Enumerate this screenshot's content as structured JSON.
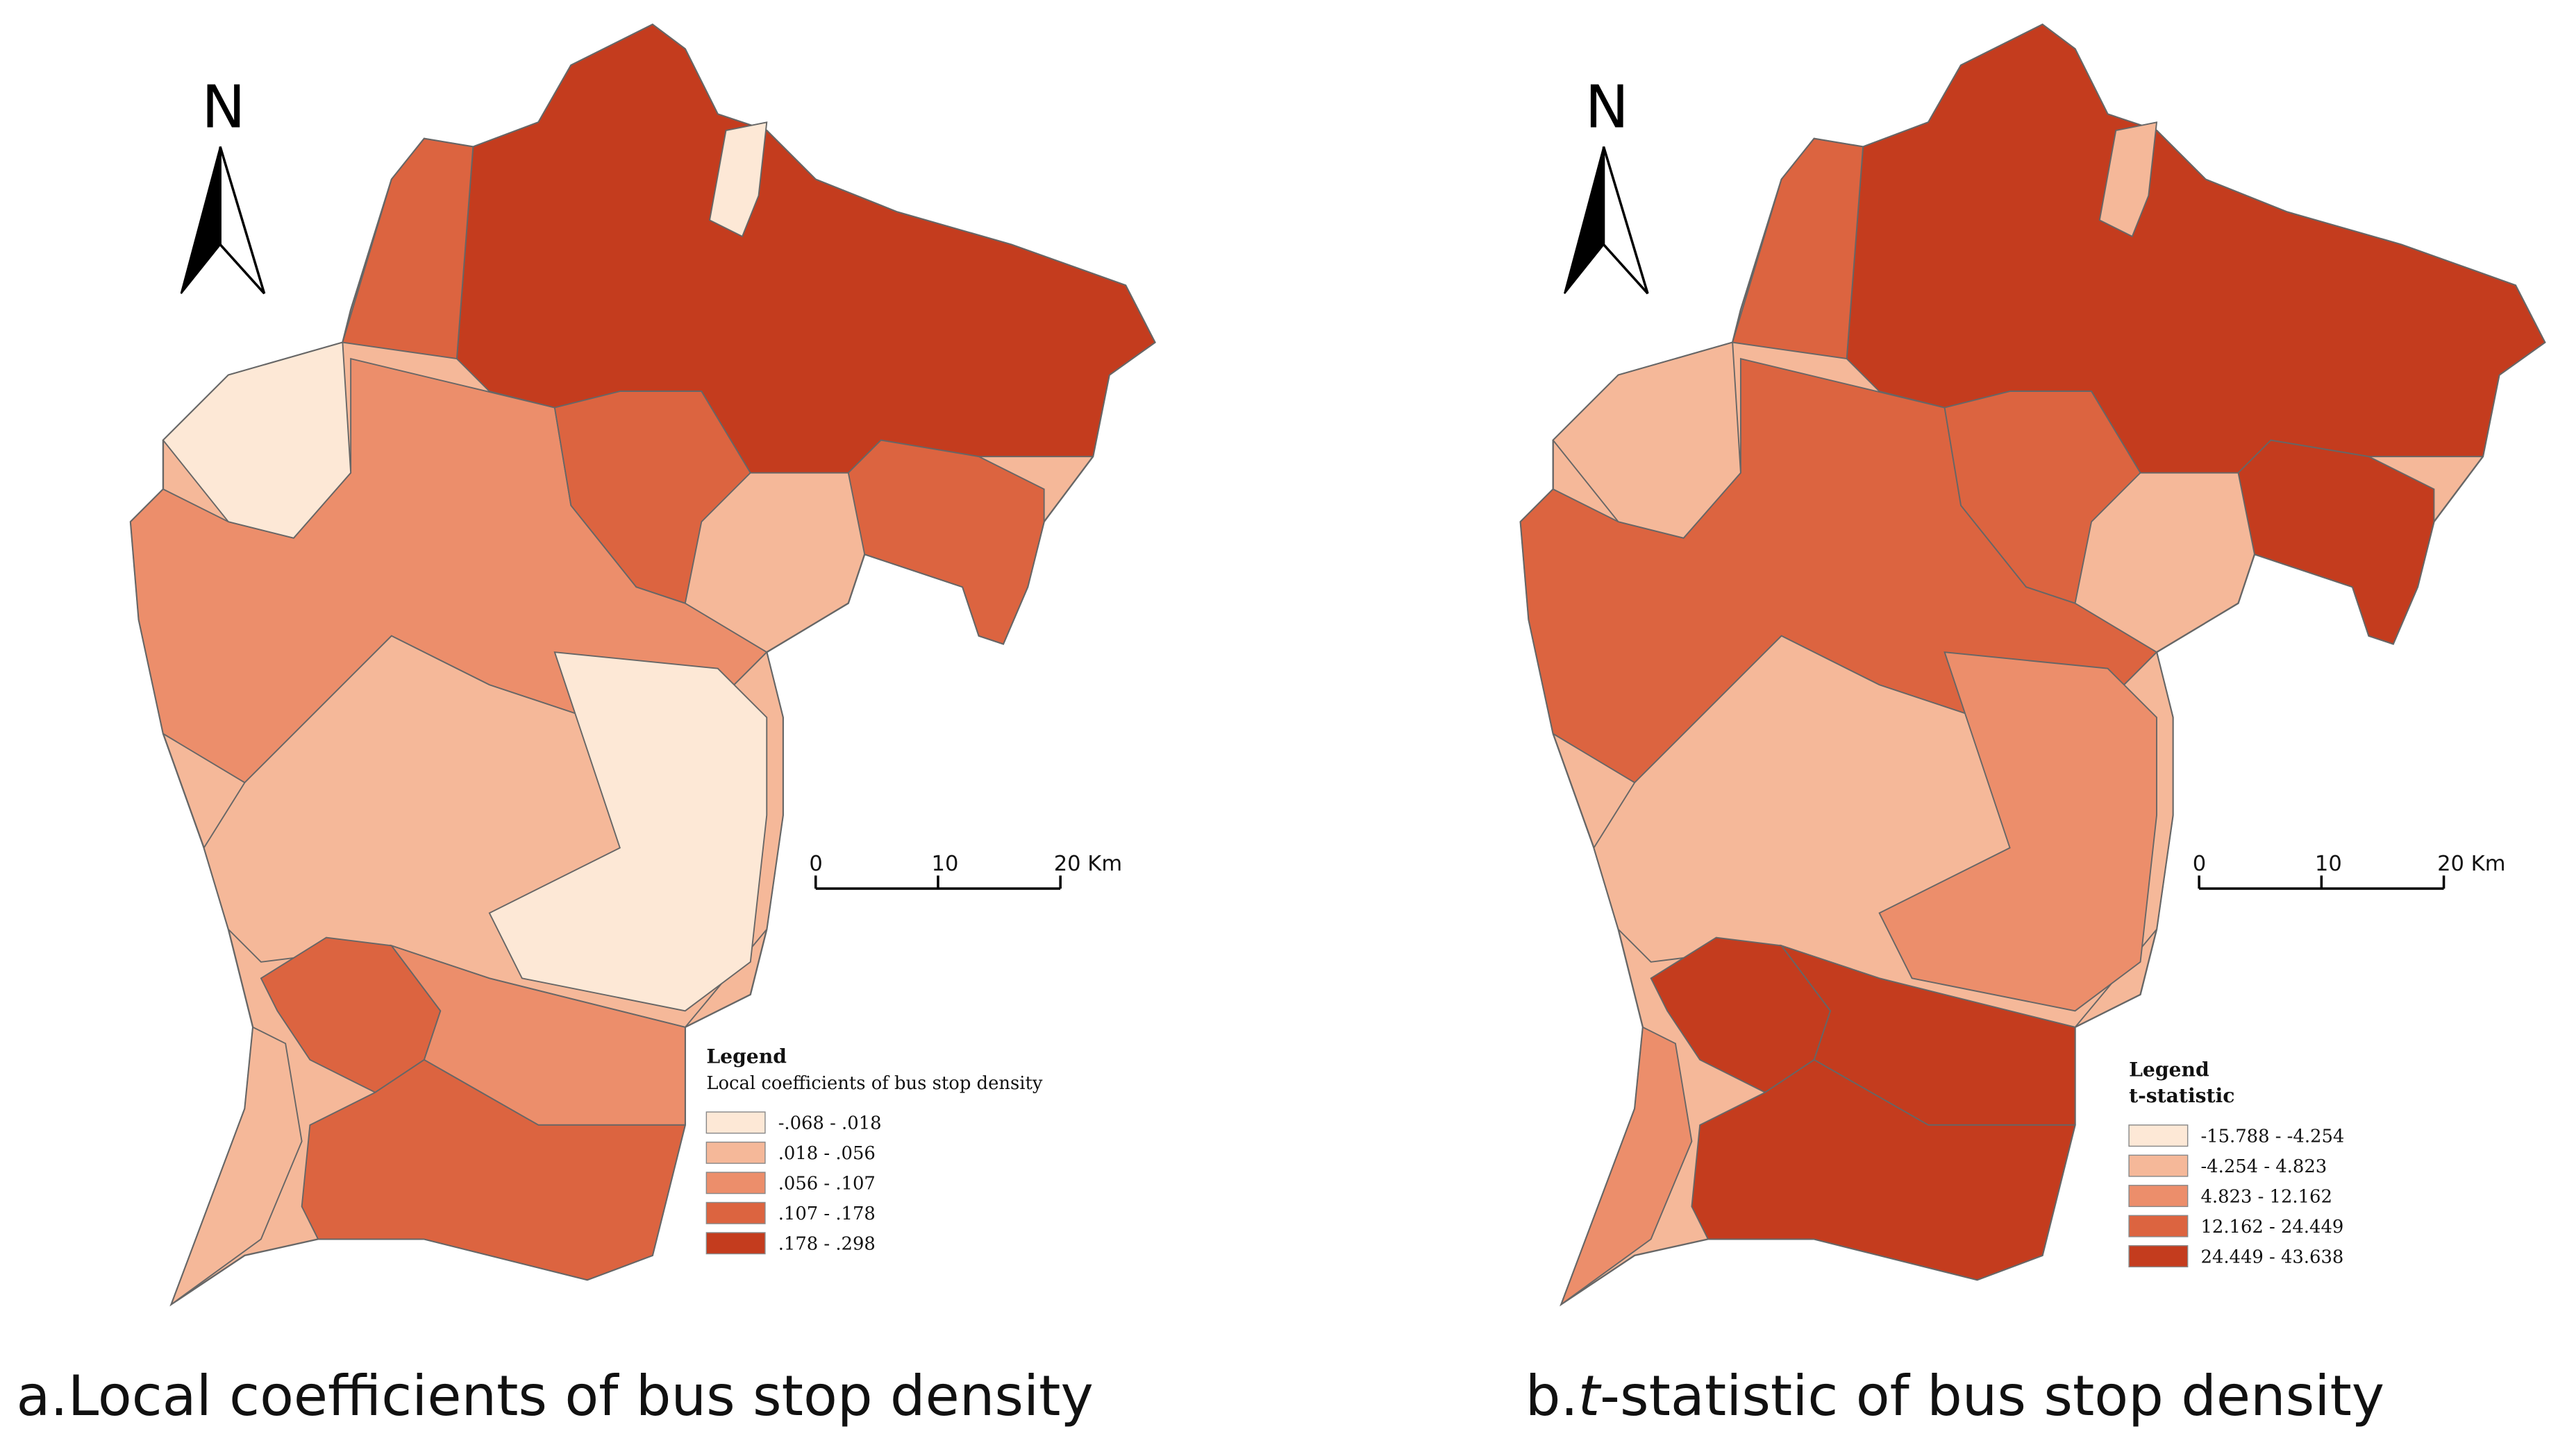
{
  "panels": [
    {
      "caption_label": "a.",
      "caption": "Local coefficients of bus stop density",
      "north": "N",
      "scale_bar": [
        "0",
        "10",
        "20 Km"
      ],
      "legend": {
        "title": "Legend",
        "subtitle": "Local coefficients of bus stop density",
        "classes": [
          {
            "label": "-.068 - .018",
            "color": "#fde8d6"
          },
          {
            "label": ".018 - .056",
            "color": "#f5b899"
          },
          {
            "label": ".056 - .107",
            "color": "#ec8e6b"
          },
          {
            "label": ".107 - .178",
            "color": "#dc6440"
          },
          {
            "label": ".178 - .298",
            "color": "#c43c1e"
          }
        ]
      }
    },
    {
      "caption_label": "b.",
      "caption_italic": "t",
      "caption": "-statistic of bus stop density",
      "north": "N",
      "scale_bar": [
        "0",
        "10",
        "20 Km"
      ],
      "legend": {
        "title": "Legend",
        "subtitle": "t-statistic",
        "classes": [
          {
            "label": "-15.788 - -4.254",
            "color": "#fde8d6"
          },
          {
            "label": "-4.254 - 4.823",
            "color": "#f5b899"
          },
          {
            "label": "4.823 - 12.162",
            "color": "#ec8e6b"
          },
          {
            "label": "12.162 - 24.449",
            "color": "#dc6440"
          },
          {
            "label": "24.449 - 43.638",
            "color": "#c43c1e"
          }
        ]
      }
    }
  ]
}
